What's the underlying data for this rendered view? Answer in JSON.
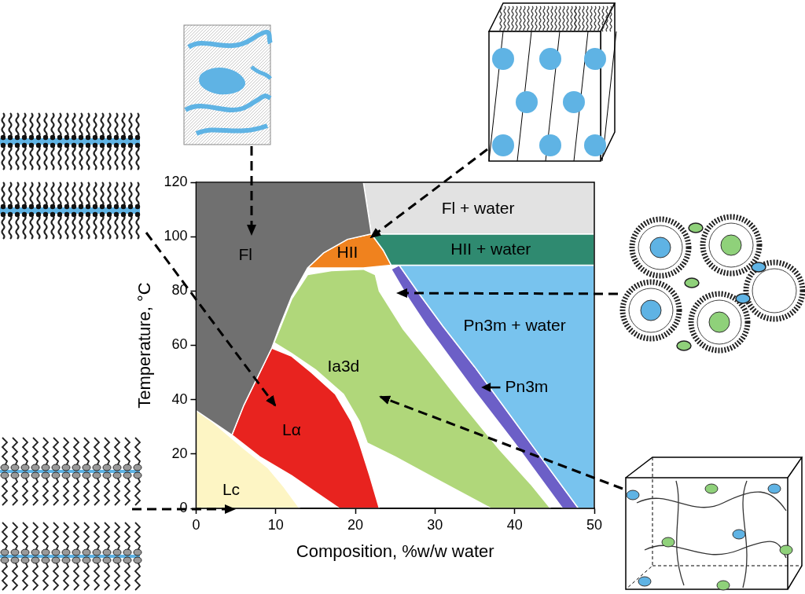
{
  "chart_data": {
    "type": "area",
    "x_label": "Composition, %w/w water",
    "y_label": "Temperature, °C",
    "xlim": [
      0,
      50
    ],
    "ylim": [
      0,
      120
    ],
    "xticks": [
      0,
      10,
      20,
      30,
      40,
      50
    ],
    "yticks": [
      0,
      20,
      40,
      60,
      80,
      100,
      120
    ],
    "grid": false,
    "series": [
      {
        "name": "Fl",
        "color": "#707070",
        "label_at": [
          6.2,
          93
        ],
        "values": [
          [
            0,
            36
          ],
          [
            0,
            120
          ],
          [
            21,
            120
          ],
          [
            22,
            101
          ],
          [
            19,
            99
          ],
          [
            16,
            94
          ],
          [
            14,
            88.5
          ],
          [
            12,
            78
          ],
          [
            10.5,
            67
          ],
          [
            9.5,
            59
          ],
          [
            8,
            50
          ],
          [
            6,
            38
          ],
          [
            4.5,
            27
          ],
          [
            2,
            32
          ],
          [
            0,
            36
          ]
        ]
      },
      {
        "name": "Fl + water",
        "color": "#e2e2e2",
        "label_at": [
          35.4,
          110
        ],
        "values": [
          [
            21,
            120
          ],
          [
            50,
            120
          ],
          [
            50,
            101
          ],
          [
            22,
            101
          ],
          [
            21,
            120
          ]
        ]
      },
      {
        "name": "HII + water",
        "color": "#2f8a70",
        "label_at": [
          37,
          95
        ],
        "values": [
          [
            22,
            101
          ],
          [
            50,
            101
          ],
          [
            50,
            89.5
          ],
          [
            24.5,
            89.5
          ],
          [
            23.5,
            95
          ],
          [
            22,
            101
          ]
        ]
      },
      {
        "name": "Pn3m + water",
        "color": "#78c3ee",
        "label_at": [
          40,
          67
        ],
        "values": [
          [
            25.5,
            89.5
          ],
          [
            50,
            89.5
          ],
          [
            50,
            0
          ],
          [
            48,
            0
          ],
          [
            46.5,
            6
          ],
          [
            43,
            20
          ],
          [
            39,
            36
          ],
          [
            35,
            52
          ],
          [
            31,
            67
          ],
          [
            28,
            79
          ],
          [
            25.5,
            89.5
          ]
        ]
      },
      {
        "name": "HII",
        "color": "#f0821e",
        "label_at": [
          19,
          94
        ],
        "values": [
          [
            22,
            101
          ],
          [
            23.5,
            95
          ],
          [
            24.5,
            89.5
          ],
          [
            21,
            88.5
          ],
          [
            17,
            88.5
          ],
          [
            14,
            88.5
          ],
          [
            16,
            94
          ],
          [
            19,
            99
          ],
          [
            22,
            101
          ]
        ]
      },
      {
        "name": "Pn3m",
        "color": "#6c5fc7",
        "label_at": [
          41.5,
          44.5
        ],
        "label_arrow_to": [
          35.8,
          44.5
        ],
        "values": [
          [
            24.5,
            88
          ],
          [
            25.5,
            89.5
          ],
          [
            28,
            79
          ],
          [
            31,
            67
          ],
          [
            35,
            52
          ],
          [
            39,
            36
          ],
          [
            43,
            20
          ],
          [
            46.5,
            6
          ],
          [
            48,
            0
          ],
          [
            46,
            0
          ],
          [
            43,
            12
          ],
          [
            40,
            24
          ],
          [
            35,
            43
          ],
          [
            31.5,
            57
          ],
          [
            29,
            67
          ],
          [
            26.5,
            78
          ],
          [
            24.5,
            88
          ]
        ]
      },
      {
        "name": "Ia3d",
        "color": "#b0d77a",
        "label_at": [
          18.5,
          52
        ],
        "values": [
          [
            9.8,
            61
          ],
          [
            10.5,
            66
          ],
          [
            12,
            77
          ],
          [
            14,
            86
          ],
          [
            17,
            87.5
          ],
          [
            21,
            88
          ],
          [
            22.5,
            86
          ],
          [
            23,
            80
          ],
          [
            26,
            66
          ],
          [
            29,
            55
          ],
          [
            33,
            40
          ],
          [
            38,
            22
          ],
          [
            42,
            9
          ],
          [
            44.5,
            0
          ],
          [
            37,
            0
          ],
          [
            30,
            11
          ],
          [
            25,
            19
          ],
          [
            21.5,
            24
          ],
          [
            20.5,
            32
          ],
          [
            18.5,
            42
          ],
          [
            15,
            51
          ],
          [
            12,
            57
          ],
          [
            9.8,
            61
          ]
        ]
      },
      {
        "name": "Lα",
        "color": "#e8231f",
        "label_at": [
          12,
          28.5
        ],
        "values": [
          [
            4.5,
            27
          ],
          [
            6,
            38
          ],
          [
            8,
            50
          ],
          [
            9.5,
            59
          ],
          [
            12,
            56
          ],
          [
            14.5,
            50
          ],
          [
            17.5,
            42
          ],
          [
            19.5,
            32
          ],
          [
            20.5,
            24
          ],
          [
            21.8,
            12
          ],
          [
            23,
            0
          ],
          [
            18,
            0
          ],
          [
            15,
            6
          ],
          [
            12,
            12
          ],
          [
            8,
            19
          ],
          [
            4.5,
            27
          ]
        ]
      },
      {
        "name": "Lc",
        "color": "#fdf5c4",
        "label_at": [
          4.4,
          6.5
        ],
        "values": [
          [
            0,
            0
          ],
          [
            13,
            0
          ],
          [
            11,
            8
          ],
          [
            9,
            15
          ],
          [
            6,
            22
          ],
          [
            4,
            27
          ],
          [
            2,
            32
          ],
          [
            0,
            36
          ],
          [
            0,
            0
          ]
        ]
      }
    ]
  }
}
